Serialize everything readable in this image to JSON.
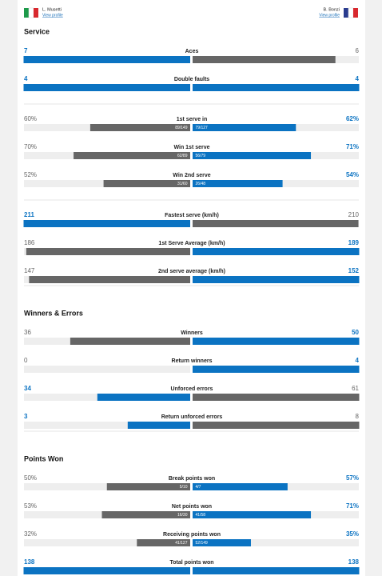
{
  "players": [
    {
      "name": "L. Musetti",
      "link": "View profile"
    },
    {
      "name": "B. Bonzi",
      "link": "View profile"
    }
  ],
  "sections": [
    {
      "title": "Service",
      "groups": [
        {
          "rows": [
            {
              "label": "Aces",
              "values": [
                7,
                6
              ],
              "colors": [
                "#0b73c2",
                "#666666"
              ]
            },
            {
              "label": "Double faults",
              "values": [
                4,
                4
              ],
              "colors": [
                "#0b73c2",
                "#0b73c2"
              ]
            }
          ]
        },
        {
          "rows": [
            {
              "label": "1st serve in",
              "values": [
                60,
                62
              ],
              "value_labels": [
                "60%",
                "62%"
              ],
              "details": [
                "89/149",
                "79/127"
              ],
              "colors": [
                "#666666",
                "#0b73c2"
              ]
            },
            {
              "label": "Win 1st serve",
              "values": [
                70,
                71
              ],
              "value_labels": [
                "70%",
                "71%"
              ],
              "details": [
                "62/89",
                "56/79"
              ],
              "colors": [
                "#666666",
                "#0b73c2"
              ]
            },
            {
              "label": "Win 2nd serve",
              "values": [
                52,
                54
              ],
              "value_labels": [
                "52%",
                "54%"
              ],
              "details": [
                "31/60",
                "26/48"
              ],
              "colors": [
                "#666666",
                "#0b73c2"
              ]
            }
          ]
        },
        {
          "rows": [
            {
              "label": "Fastest serve (km/h)",
              "values": [
                211,
                210
              ],
              "colors": [
                "#0b73c2",
                "#666666"
              ]
            },
            {
              "label": "1st Serve Average (km/h)",
              "values": [
                186,
                189
              ],
              "colors": [
                "#666666",
                "#0b73c2"
              ]
            },
            {
              "label": "2nd serve average (km/h)",
              "values": [
                147,
                152
              ],
              "colors": [
                "#666666",
                "#0b73c2"
              ]
            }
          ]
        }
      ]
    },
    {
      "title": "Winners & Errors",
      "groups": [
        {
          "rows": [
            {
              "label": "Winners",
              "values": [
                36,
                50
              ],
              "colors": [
                "#666666",
                "#0b73c2"
              ]
            },
            {
              "label": "Return winners",
              "values": [
                0,
                4
              ],
              "colors": [
                "#666666",
                "#0b73c2"
              ]
            },
            {
              "label": "Unforced errors",
              "values": [
                34,
                61
              ],
              "colors": [
                "#0b73c2",
                "#666666"
              ]
            },
            {
              "label": "Return unforced errors",
              "values": [
                3,
                8
              ],
              "colors": [
                "#0b73c2",
                "#666666"
              ]
            }
          ]
        }
      ]
    },
    {
      "title": "Points Won",
      "groups": [
        {
          "rows": [
            {
              "label": "Break points won",
              "values": [
                50,
                57
              ],
              "value_labels": [
                "50%",
                "57%"
              ],
              "details": [
                "5/10",
                "4/7"
              ],
              "colors": [
                "#666666",
                "#0b73c2"
              ]
            },
            {
              "label": "Net points won",
              "values": [
                53,
                71
              ],
              "value_labels": [
                "53%",
                "71%"
              ],
              "details": [
                "16/30",
                "41/58"
              ],
              "colors": [
                "#666666",
                "#0b73c2"
              ]
            },
            {
              "label": "Receiving points won",
              "values": [
                32,
                35
              ],
              "value_labels": [
                "32%",
                "35%"
              ],
              "details": [
                "41/127",
                "52/149"
              ],
              "colors": [
                "#666666",
                "#0b73c2"
              ]
            },
            {
              "label": "Total points won",
              "values": [
                138,
                138
              ],
              "colors": [
                "#0b73c2",
                "#0b73c2"
              ]
            }
          ]
        }
      ]
    }
  ]
}
